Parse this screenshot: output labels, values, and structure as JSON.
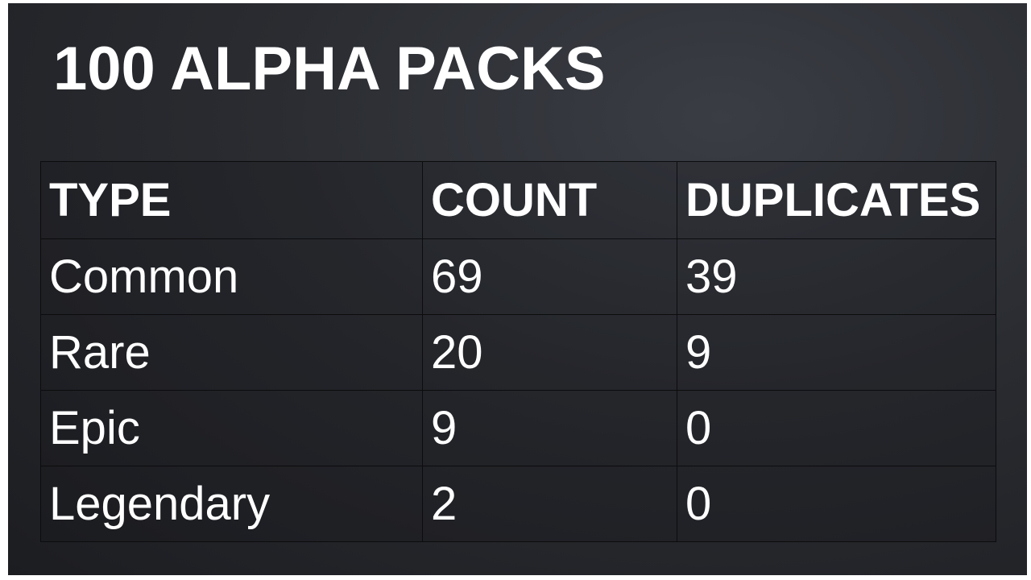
{
  "title": "100 ALPHA PACKS",
  "table": {
    "headers": [
      "TYPE",
      "COUNT",
      "DUPLICATES"
    ],
    "rows": [
      [
        "Common",
        "69",
        "39"
      ],
      [
        "Rare",
        "20",
        "9"
      ],
      [
        "Epic",
        "9",
        "0"
      ],
      [
        "Legendary",
        "2",
        "0"
      ]
    ]
  },
  "colors": {
    "background": "#2a2c31",
    "text": "#ffffff",
    "grid_lines": "#0c0c0e"
  }
}
